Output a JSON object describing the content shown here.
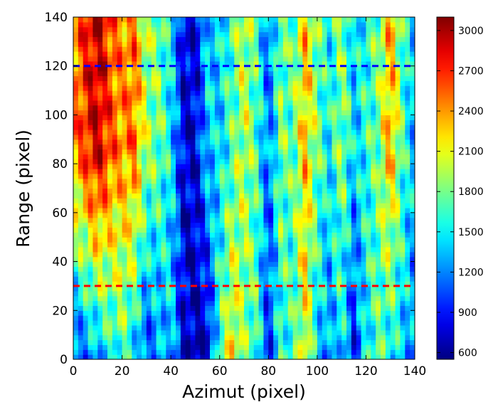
{
  "chart_data": {
    "type": "heatmap",
    "xlabel": "Azimut (pixel)",
    "ylabel": "Range (pixel)",
    "xlim": [
      0,
      140
    ],
    "ylim": [
      0,
      140
    ],
    "x_ticks": [
      "0",
      "20",
      "40",
      "60",
      "80",
      "100",
      "120",
      "140"
    ],
    "y_ticks": [
      "0",
      "20",
      "40",
      "60",
      "80",
      "100",
      "120",
      "140"
    ],
    "colorbar": {
      "range": [
        550,
        3100
      ],
      "ticks": [
        "600",
        "900",
        "1200",
        "1500",
        "1800",
        "2100",
        "2400",
        "2700",
        "3000"
      ],
      "colormap": "jet"
    },
    "hlines": [
      {
        "y": 120,
        "color": "#0000ff",
        "style": "dashed"
      },
      {
        "y": 30,
        "color": "#ff0000",
        "style": "dashed"
      }
    ],
    "grid": false,
    "approx_column_profile": {
      "azimut": [
        0,
        5,
        10,
        15,
        20,
        25,
        30,
        35,
        40,
        45,
        50,
        55,
        60,
        65,
        70,
        75,
        80,
        85,
        90,
        95,
        100,
        105,
        110,
        115,
        120,
        125,
        130,
        135,
        140
      ],
      "low_range_value": [
        1000,
        1100,
        1300,
        1500,
        1700,
        1400,
        1000,
        1200,
        1400,
        800,
        650,
        700,
        1700,
        2200,
        1800,
        1700,
        900,
        1600,
        1600,
        2100,
        1400,
        1200,
        1500,
        900,
        1500,
        1700,
        1500,
        1400,
        1200
      ],
      "high_range_value": [
        2400,
        2700,
        2950,
        2600,
        2400,
        2500,
        1900,
        1800,
        1500,
        800,
        750,
        1400,
        1400,
        1700,
        2000,
        1700,
        1100,
        1800,
        1700,
        2300,
        1800,
        1500,
        1900,
        1400,
        1600,
        1800,
        2400,
        1700,
        1300
      ]
    }
  }
}
